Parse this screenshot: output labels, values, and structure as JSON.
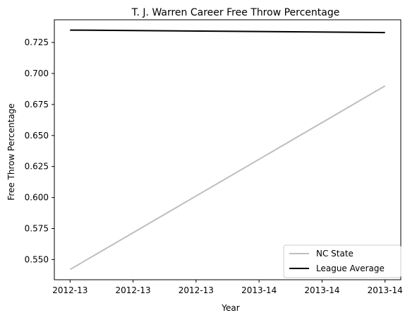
{
  "chart_data": {
    "type": "line",
    "title": "T. J. Warren Career Free Throw Percentage",
    "xlabel": "Year",
    "ylabel": "Free Throw Percentage",
    "x": [
      0,
      1
    ],
    "x_tick_values": [
      0,
      0.2,
      0.4,
      0.6,
      0.8,
      1.0
    ],
    "x_tick_labels": [
      "2012-13",
      "2012-13",
      "2012-13",
      "2013-14",
      "2013-14",
      "2013-14"
    ],
    "xlim": [
      -0.05,
      1.05
    ],
    "ylim": [
      0.5337,
      0.7433
    ],
    "y_ticks": [
      "0.550",
      "0.575",
      "0.600",
      "0.625",
      "0.650",
      "0.675",
      "0.700",
      "0.725"
    ],
    "grid": false,
    "legend_position": "lower-right",
    "series": [
      {
        "name": "NC State",
        "values": [
          0.542,
          0.69
        ],
        "color": "#bfbfbf"
      },
      {
        "name": "League Average",
        "values": [
          0.735,
          0.733
        ],
        "color": "#000000"
      }
    ]
  }
}
